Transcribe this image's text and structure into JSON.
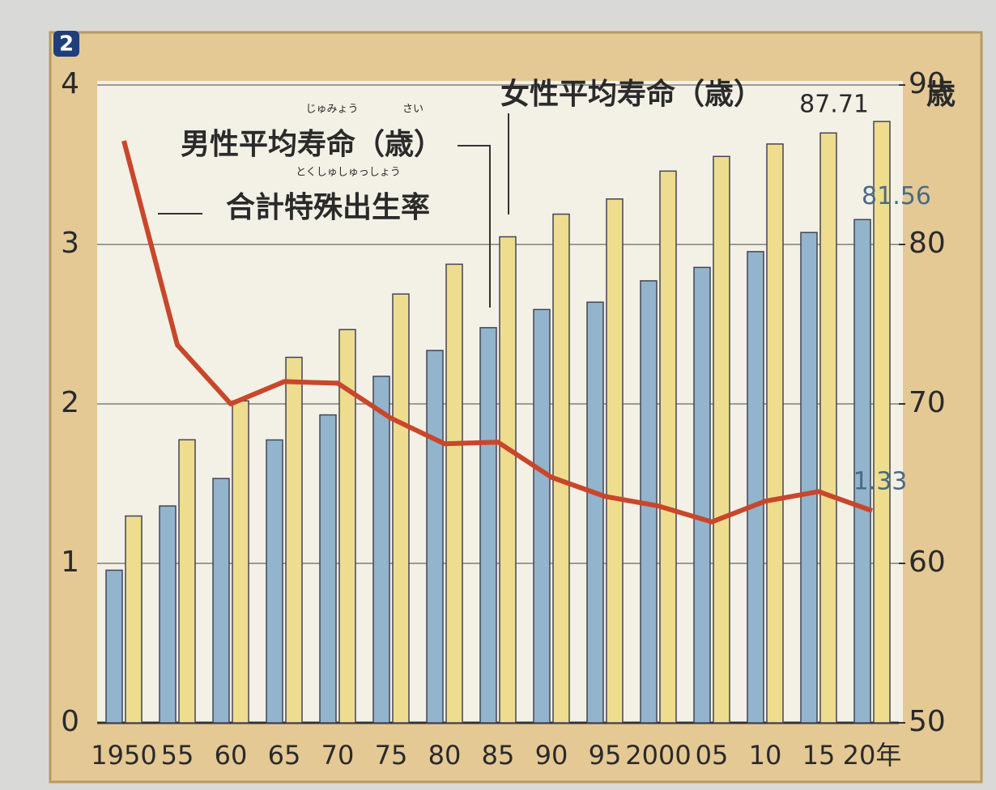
{
  "chart_data": {
    "type": "bar_line",
    "badge": "2",
    "y2_unit": "歳",
    "categories": [
      "1950",
      "55",
      "60",
      "65",
      "70",
      "75",
      "80",
      "85",
      "90",
      "95",
      "2000",
      "05",
      "10",
      "15",
      "20年"
    ],
    "series": [
      {
        "name": "男性平均寿命（歳）",
        "type": "bar",
        "axis": "y2",
        "color": "#92b4cc",
        "values": [
          59.57,
          63.6,
          65.32,
          67.74,
          69.31,
          71.73,
          73.35,
          74.78,
          75.92,
          76.38,
          77.72,
          78.56,
          79.55,
          80.75,
          81.56
        ]
      },
      {
        "name": "女性平均寿命（歳）",
        "type": "bar",
        "axis": "y2",
        "color": "#eedd8e",
        "values": [
          62.97,
          67.75,
          70.19,
          72.92,
          74.66,
          76.89,
          78.76,
          80.48,
          81.9,
          82.85,
          84.6,
          85.52,
          86.3,
          86.99,
          87.71
        ]
      },
      {
        "name": "合計特殊出生率",
        "type": "line",
        "axis": "y",
        "color": "#c8472b",
        "values": [
          3.65,
          2.37,
          2.0,
          2.14,
          2.13,
          1.91,
          1.75,
          1.76,
          1.54,
          1.42,
          1.36,
          1.26,
          1.39,
          1.45,
          1.33
        ]
      }
    ],
    "ruby": [
      "じゅみょう",
      "さい",
      "とくしゅしゅっしょう"
    ],
    "ylim": [
      0,
      4
    ],
    "yticks": [
      0,
      1,
      2,
      3,
      4
    ],
    "y2lim": [
      50,
      90
    ],
    "y2ticks": [
      50,
      60,
      70,
      80,
      90
    ],
    "grid": true
  }
}
